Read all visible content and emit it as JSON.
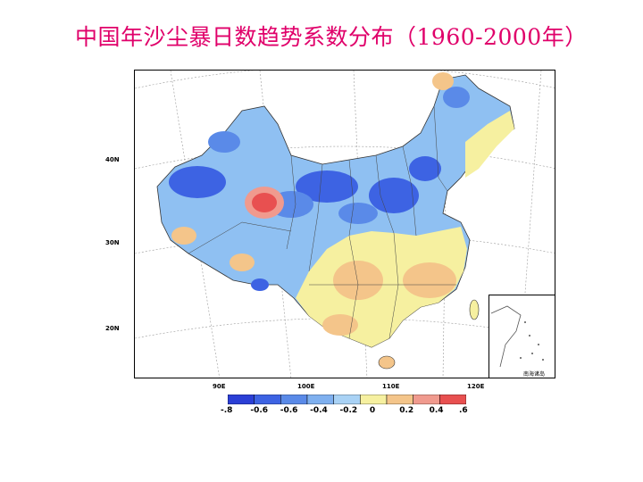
{
  "title": "中国年沙尘暴日数趋势系数分布（1960-2000年）",
  "map": {
    "lat_labels": [
      "40N",
      "30N",
      "20N"
    ],
    "lon_labels": [
      "90E",
      "100E",
      "110E",
      "120E"
    ],
    "inset_label": "南海诸岛"
  },
  "legend": {
    "labels": [
      "-.8",
      "-0.6",
      "-0.6",
      "-0.4",
      "-0.2",
      "0",
      "0.2",
      "0.4",
      ".6"
    ],
    "colors": [
      "#2b3fd6",
      "#3d63e3",
      "#5a8ae8",
      "#7fb0ef",
      "#a9d2f5",
      "#f6f0a0",
      "#f4c58a",
      "#f09a8e",
      "#e85050"
    ]
  },
  "colors": {
    "title": "#e0006a",
    "strong_negative": "#2b3fd6",
    "negative": "#5a8ae8",
    "weak_negative": "#a9d2f5",
    "neutral": "#f6f0a0",
    "positive": "#f4c58a",
    "strong_positive": "#e85050"
  }
}
